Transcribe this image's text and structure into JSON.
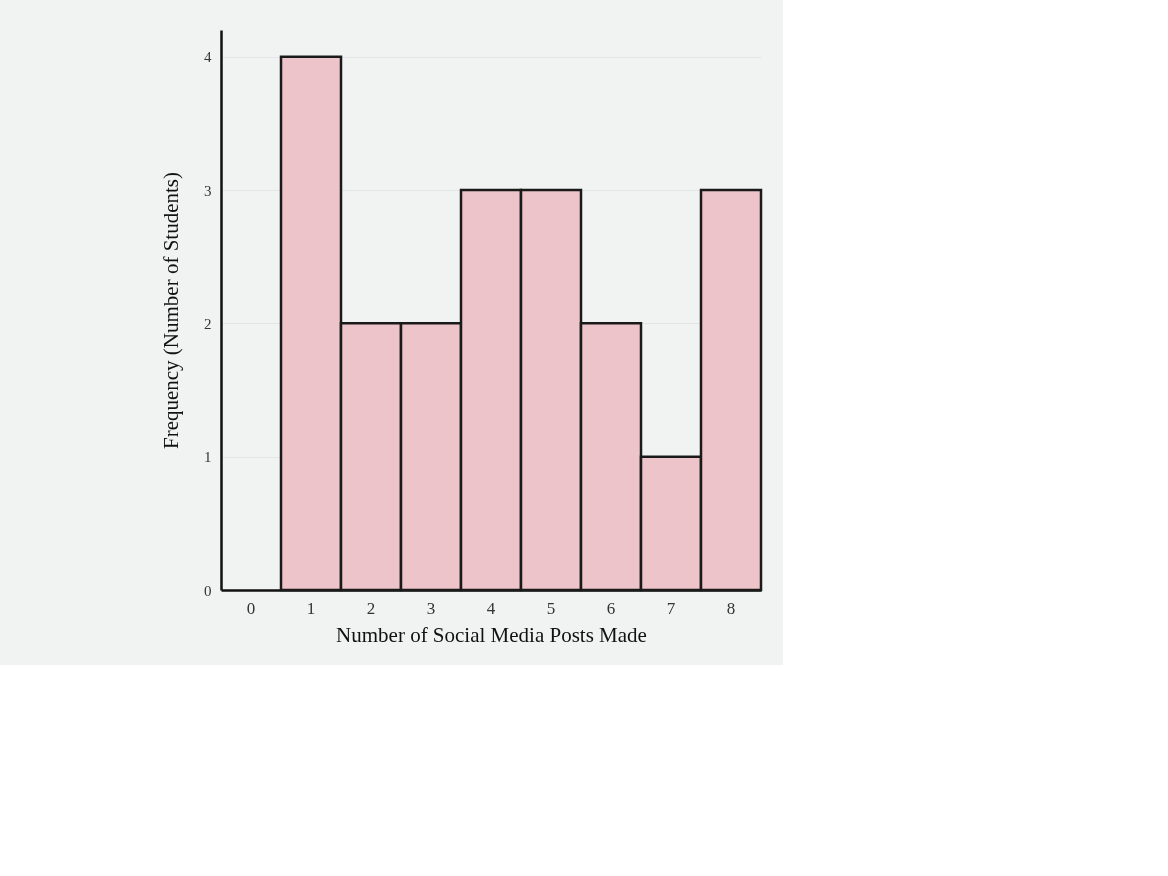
{
  "chart_data": {
    "type": "bar",
    "xlabel": "Number of Social Media Posts Made",
    "ylabel": "Frequency (Number of Students)",
    "categories": [
      "0",
      "1",
      "2",
      "3",
      "4",
      "5",
      "6",
      "7",
      "8"
    ],
    "values": [
      null,
      4,
      2,
      2,
      3,
      3,
      2,
      1,
      3
    ],
    "color": "#ecc4c9",
    "ylim": [
      0,
      4.2
    ],
    "yticks": [
      0,
      1,
      2,
      3,
      4
    ],
    "grid": "y"
  }
}
